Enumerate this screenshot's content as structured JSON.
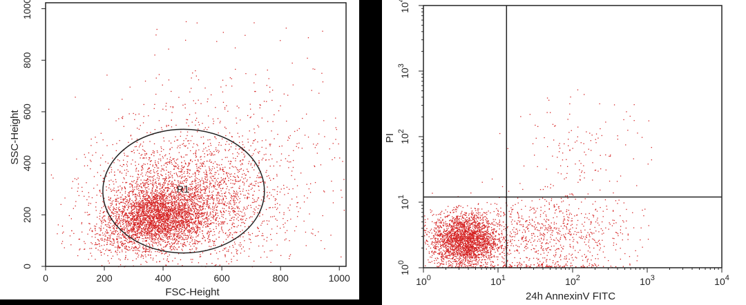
{
  "colors": {
    "dots": "#d42020",
    "axis": "#222222",
    "background": "#ffffff",
    "frame": "#000000"
  },
  "chart_data": [
    {
      "type": "scatter",
      "xlabel": "FSC-Height",
      "ylabel": "SSC-Height",
      "xlim": [
        0,
        1023
      ],
      "ylim": [
        0,
        1023
      ],
      "xticks": [
        {
          "value": 0,
          "label": "0"
        },
        {
          "value": 200,
          "label": "200"
        },
        {
          "value": 400,
          "label": "400"
        },
        {
          "value": 600,
          "label": "600"
        },
        {
          "value": 800,
          "label": "800"
        },
        {
          "value": 1000,
          "label": "1000"
        }
      ],
      "yticks": [
        {
          "value": 0,
          "label": "0"
        },
        {
          "value": 200,
          "label": "200"
        },
        {
          "value": 400,
          "label": "400"
        },
        {
          "value": 600,
          "label": "600"
        },
        {
          "value": 800,
          "label": "800"
        },
        {
          "value": 1000,
          "label": "1000"
        }
      ],
      "gate": {
        "label": "R1",
        "center": [
          470,
          292
        ],
        "radius_x": 275,
        "radius_y": 240
      },
      "populations": [
        {
          "center": [
            380,
            190
          ],
          "spread": [
            80,
            55
          ],
          "count": 2600
        },
        {
          "center": [
            470,
            260
          ],
          "spread": [
            150,
            110
          ],
          "count": 2400
        },
        {
          "center": [
            620,
            380
          ],
          "spread": [
            220,
            220
          ],
          "count": 700
        },
        {
          "center": [
            250,
            110
          ],
          "spread": [
            70,
            50
          ],
          "count": 300
        }
      ]
    },
    {
      "type": "scatter",
      "xlabel": "24h AnnexinV FITC",
      "ylabel": "PI",
      "xscale": "log",
      "yscale": "log",
      "xlim": [
        1,
        10000
      ],
      "ylim": [
        1,
        10000
      ],
      "xticks": [
        {
          "value": 1,
          "base": "10",
          "exp": "0"
        },
        {
          "value": 10,
          "base": "10",
          "exp": "1"
        },
        {
          "value": 100,
          "base": "10",
          "exp": "2"
        },
        {
          "value": 1000,
          "base": "10",
          "exp": "3"
        },
        {
          "value": 10000,
          "base": "10",
          "exp": "4"
        }
      ],
      "yticks": [
        {
          "value": 1,
          "base": "10",
          "exp": "0"
        },
        {
          "value": 10,
          "base": "10",
          "exp": "1"
        },
        {
          "value": 100,
          "base": "10",
          "exp": "2"
        },
        {
          "value": 1000,
          "base": "10",
          "exp": "3"
        },
        {
          "value": 10000,
          "base": "10",
          "exp": "4"
        }
      ],
      "quadrant_lines": {
        "x": 13,
        "y": 12
      },
      "populations": [
        {
          "center_log": [
            0.55,
            0.42
          ],
          "spread_log": [
            0.22,
            0.2
          ],
          "count": 2600
        },
        {
          "center_log": [
            1.6,
            0.5
          ],
          "spread_log": [
            0.55,
            0.28
          ],
          "count": 800
        },
        {
          "center_log": [
            2.1,
            1.7
          ],
          "spread_log": [
            0.45,
            0.45
          ],
          "count": 150
        },
        {
          "center_log": [
            1.5,
            0.02
          ],
          "spread_log": [
            0.6,
            0.02
          ],
          "count": 120
        }
      ]
    }
  ]
}
